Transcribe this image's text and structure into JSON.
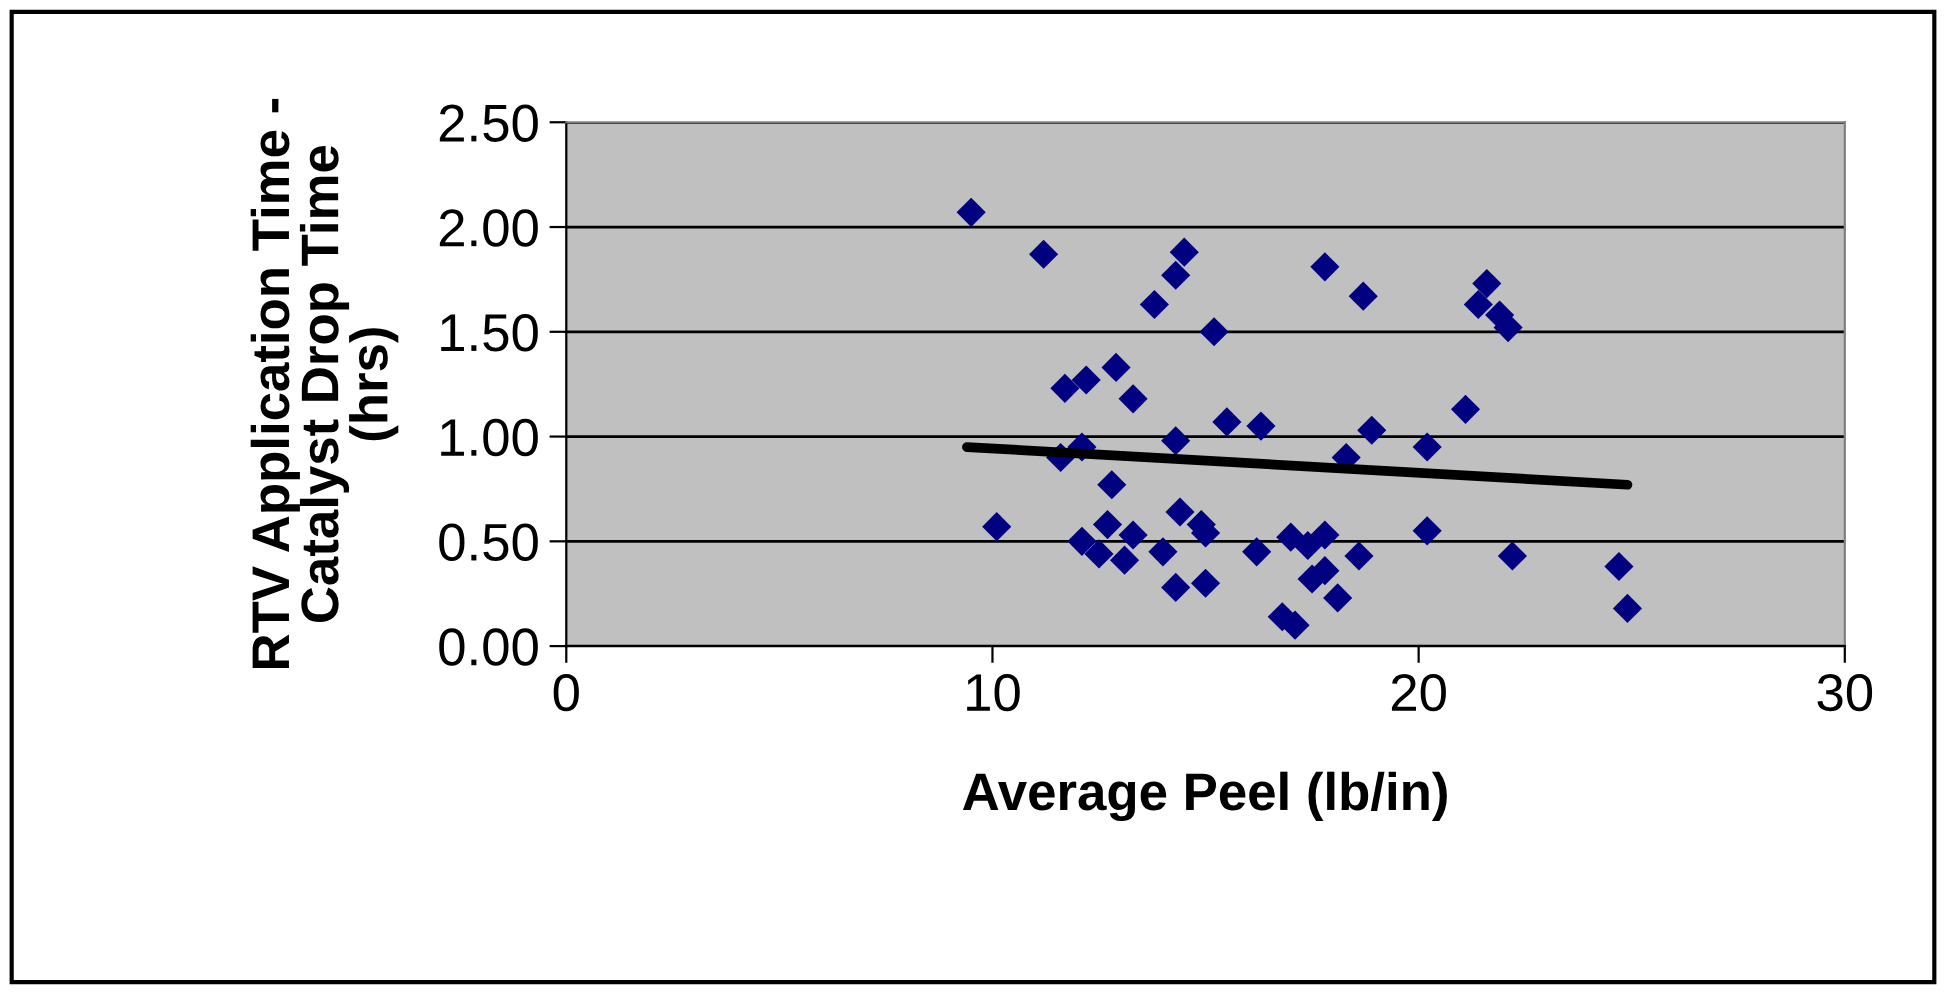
{
  "chart_data": {
    "type": "scatter",
    "xlabel": "Average Peel (lb/in)",
    "ylabel": "RTV Application Time -\nCatalyst Drop Time\n(hrs)",
    "xlim": [
      0,
      30
    ],
    "xticks": [
      0,
      10,
      20,
      30
    ],
    "ylim": [
      0,
      2.5
    ],
    "yticks": [
      {
        "value": 0,
        "label": "0.00"
      },
      {
        "value": 0.5,
        "label": "0.50"
      },
      {
        "value": 1,
        "label": "1.00"
      },
      {
        "value": 1.5,
        "label": "1.50"
      },
      {
        "value": 2,
        "label": "2.00"
      },
      {
        "value": 2.5,
        "label": "2.50"
      }
    ],
    "grid": "y",
    "legend": false,
    "marker": "diamond",
    "series": [
      {
        "color": "#000080",
        "x": [
          9.5,
          11.2,
          14.5,
          14.3,
          13.8,
          15.2,
          12.9,
          12.2,
          11.7,
          13.3,
          15.5,
          16.3,
          14.3,
          12.1,
          11.6,
          12.8,
          10.1,
          12.1,
          12.7,
          12.5,
          13.3,
          13.1,
          14.0,
          14.4,
          14.9,
          15.0,
          14.3,
          15.0,
          16.2,
          17.0,
          17.4,
          17.5,
          16.8,
          17.1,
          17.8,
          17.8,
          18.6,
          18.1,
          20.2,
          22.2,
          24.7,
          24.9,
          17.8,
          18.7,
          21.6,
          21.4,
          21.9,
          22.1,
          21.1,
          18.9,
          18.3,
          20.2
        ],
        "values": [
          2.07,
          1.87,
          1.88,
          1.77,
          1.63,
          1.5,
          1.33,
          1.27,
          1.23,
          1.18,
          1.07,
          1.05,
          0.98,
          0.95,
          0.9,
          0.77,
          0.57,
          0.5,
          0.58,
          0.44,
          0.53,
          0.41,
          0.45,
          0.64,
          0.58,
          0.54,
          0.28,
          0.3,
          0.45,
          0.52,
          0.48,
          0.32,
          0.14,
          0.1,
          0.53,
          0.36,
          0.43,
          0.23,
          0.55,
          0.43,
          0.38,
          0.18,
          1.81,
          1.67,
          1.73,
          1.63,
          1.58,
          1.52,
          1.13,
          1.03,
          0.9,
          0.95
        ]
      },
      {
        "type": "line",
        "color": "#000000",
        "marker": "none",
        "line_style": "solid",
        "x": [
          9.4,
          24.9
        ],
        "values": [
          0.95,
          0.77
        ]
      }
    ]
  }
}
